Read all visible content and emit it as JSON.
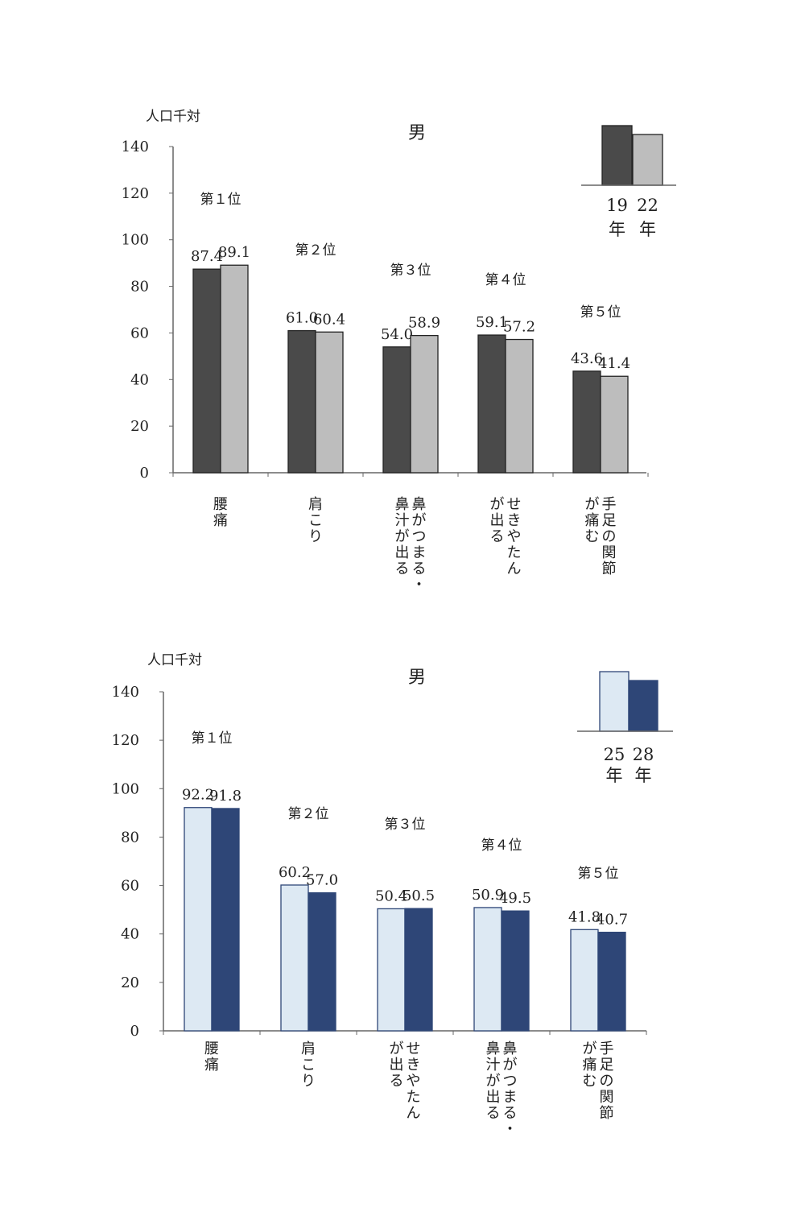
{
  "chart_data": [
    {
      "type": "bar",
      "title": "男",
      "ylabel": "人口千対",
      "ylim": [
        0,
        140
      ],
      "yticks": [
        0,
        20,
        40,
        60,
        80,
        100,
        120,
        140
      ],
      "categories": [
        "腰痛",
        "肩こり",
        "鼻がつまる・鼻汁が出る",
        "せきやたんが出る",
        "手足の関節が痛む"
      ],
      "category_columns": [
        [
          "腰",
          "痛"
        ],
        [
          "肩",
          "こ",
          "り"
        ],
        [
          "鼻",
          "が",
          "つ",
          "ま",
          "る",
          "・",
          "鼻",
          "汁",
          "が",
          "出",
          "る"
        ],
        [
          "せ",
          "き",
          "や",
          "た",
          "ん",
          "が",
          "出",
          "る"
        ],
        [
          "手",
          "足",
          "の",
          "関",
          "節",
          "が",
          "痛",
          "む"
        ]
      ],
      "category_lines": [
        [
          "腰痛"
        ],
        [
          "肩こり"
        ],
        [
          "鼻がつまる・",
          "鼻汁が出る"
        ],
        [
          "せきやたん",
          "が出る"
        ],
        [
          "手足の関節",
          "が痛む"
        ]
      ],
      "ranks": [
        "第１位",
        "第２位",
        "第３位",
        "第４位",
        "第５位"
      ],
      "series": [
        {
          "name": "19年",
          "color": "#4a4a4a",
          "values": [
            87.4,
            61.0,
            54.0,
            59.1,
            43.6
          ],
          "labels": [
            "87.4",
            "61.0",
            "54.0",
            "59.1",
            "43.6"
          ]
        },
        {
          "name": "22年",
          "color": "#bdbdbd",
          "values": [
            89.1,
            60.4,
            58.9,
            57.2,
            41.4
          ],
          "labels": [
            "89.1",
            "60.4",
            "58.9",
            "57.2",
            "41.4"
          ]
        }
      ],
      "legend": {
        "position": "top-right",
        "years": [
          "19",
          "22"
        ],
        "unit": "年"
      }
    },
    {
      "type": "bar",
      "title": "男",
      "ylabel": "人口千対",
      "ylim": [
        0,
        140
      ],
      "yticks": [
        0,
        20,
        40,
        60,
        80,
        100,
        120,
        140
      ],
      "categories": [
        "腰痛",
        "肩こり",
        "せきやたんが出る",
        "鼻がつまる・鼻汁が出る",
        "手足の関節が痛む"
      ],
      "category_lines": [
        [
          "腰痛"
        ],
        [
          "肩こり"
        ],
        [
          "せきやたん",
          "が出る"
        ],
        [
          "鼻がつまる・",
          "鼻汁が出る"
        ],
        [
          "手足の関節",
          "が痛む"
        ]
      ],
      "ranks": [
        "第１位",
        "第２位",
        "第３位",
        "第４位",
        "第５位"
      ],
      "series": [
        {
          "name": "25年",
          "color": "#dde9f3",
          "values": [
            92.2,
            60.2,
            50.4,
            50.9,
            41.8
          ],
          "labels": [
            "92.2",
            "60.2",
            "50.4",
            "50.9",
            "41.8"
          ]
        },
        {
          "name": "28年",
          "color": "#2e4677",
          "values": [
            91.8,
            57.0,
            50.5,
            49.5,
            40.7
          ],
          "labels": [
            "91.8",
            "57.0",
            "50.5",
            "49.5",
            "40.7"
          ]
        }
      ],
      "legend": {
        "position": "top-right",
        "years": [
          "25",
          "28"
        ],
        "unit": "年"
      }
    }
  ]
}
